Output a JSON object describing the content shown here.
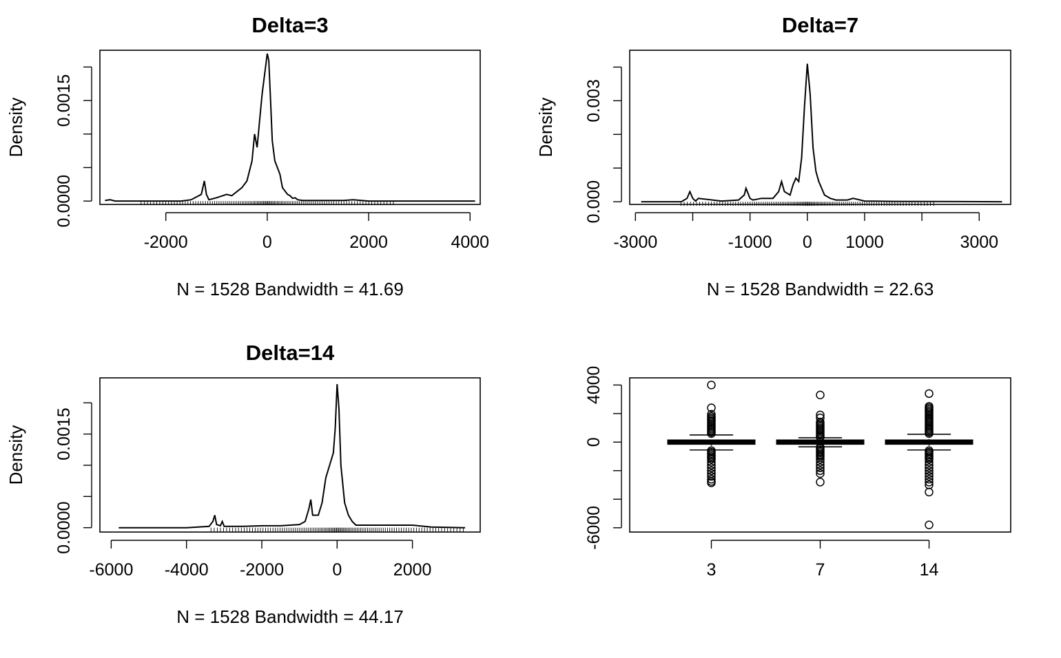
{
  "chart_data": [
    {
      "type": "line",
      "title": "Delta=3",
      "xlabel": "N = 1528   Bandwidth = 41.69",
      "ylabel": "Density",
      "xlim": [
        -3300,
        4200
      ],
      "ylim": [
        -5e-05,
        0.00225
      ],
      "xticks": [
        -2000,
        0,
        2000,
        4000
      ],
      "yticks": [
        0.0,
        0.0005,
        0.001,
        0.0015,
        0.002
      ],
      "ytick_labels": [
        "0.0000",
        "",
        "",
        "0.0015",
        ""
      ],
      "x": [
        -3200,
        -3100,
        -3000,
        -2500,
        -2000,
        -1700,
        -1500,
        -1300,
        -1240,
        -1200,
        -1150,
        -1000,
        -800,
        -700,
        -500,
        -400,
        -300,
        -250,
        -200,
        -150,
        -100,
        -50,
        0,
        30,
        60,
        100,
        150,
        200,
        250,
        300,
        400,
        450,
        500,
        550,
        600,
        700,
        800,
        1000,
        1500,
        1700,
        2000,
        2500,
        3000,
        4100
      ],
      "series": [
        {
          "values": [
            1e-05,
            2e-05,
            0,
            0,
            0,
            0,
            2e-05,
            0.0001,
            0.0003,
            0.0001,
            2e-05,
            5e-05,
            0.0001,
            8e-05,
            0.0002,
            0.0003,
            0.0006,
            0.001,
            0.0008,
            0.0012,
            0.0016,
            0.0019,
            0.0022,
            0.0021,
            0.0016,
            0.0009,
            0.0006,
            0.0005,
            0.0004,
            0.0002,
            0.0001,
            8e-05,
            4e-05,
            5e-05,
            2e-05,
            1e-05,
            1e-05,
            1e-05,
            1e-05,
            2e-05,
            0,
            0,
            0,
            0
          ]
        }
      ]
    },
    {
      "type": "line",
      "title": "Delta=7",
      "xlabel": "N = 1528   Bandwidth = 22.63",
      "ylabel": "Density",
      "xlim": [
        -3100,
        3550
      ],
      "ylim": [
        -8e-05,
        0.0045
      ],
      "xticks": [
        -3000,
        -2000,
        -1000,
        0,
        1000,
        2000,
        3000
      ],
      "xtick_labels": [
        "-3000",
        "",
        "-1000",
        "0",
        "1000",
        "",
        "3000"
      ],
      "yticks": [
        0.0,
        0.001,
        0.002,
        0.003,
        0.004
      ],
      "ytick_labels": [
        "0.000",
        "",
        "",
        "0.003",
        ""
      ],
      "x": [
        -2900,
        -2200,
        -2100,
        -2050,
        -2000,
        -1950,
        -1900,
        -1500,
        -1200,
        -1100,
        -1070,
        -1000,
        -950,
        -800,
        -600,
        -500,
        -450,
        -400,
        -300,
        -250,
        -200,
        -150,
        -100,
        -50,
        0,
        50,
        100,
        150,
        200,
        250,
        300,
        400,
        500,
        700,
        800,
        1000,
        1500,
        3400
      ],
      "series": [
        {
          "values": [
            0,
            0,
            0.0001,
            0.0003,
            0.0001,
            2e-05,
            0.0001,
            2e-05,
            5e-05,
            0.0002,
            0.0004,
            0.0001,
            5e-05,
            0.0001,
            0.0001,
            0.0003,
            0.0006,
            0.0003,
            0.0002,
            0.0005,
            0.0007,
            0.0006,
            0.0013,
            0.0028,
            0.0041,
            0.0032,
            0.0016,
            0.0009,
            0.0006,
            0.0004,
            0.0002,
            0.0001,
            5e-05,
            5e-05,
            0.0001,
            2e-05,
            1e-05,
            0
          ]
        }
      ]
    },
    {
      "type": "line",
      "title": "Delta=14",
      "xlabel": "N = 1528   Bandwidth = 44.17",
      "ylabel": "Density",
      "xlim": [
        -6300,
        3800
      ],
      "ylim": [
        -7e-05,
        0.0024
      ],
      "xticks": [
        -6000,
        -4000,
        -2000,
        0,
        2000
      ],
      "yticks": [
        0.0,
        0.0005,
        0.001,
        0.0015,
        0.002
      ],
      "ytick_labels": [
        "0.0000",
        "",
        "",
        "0.0015",
        ""
      ],
      "x": [
        -5800,
        -4000,
        -3400,
        -3300,
        -3250,
        -3200,
        -3100,
        -3050,
        -3000,
        -2500,
        -2000,
        -1500,
        -1000,
        -850,
        -750,
        -700,
        -650,
        -500,
        -400,
        -300,
        -200,
        -100,
        -50,
        0,
        50,
        100,
        200,
        300,
        400,
        500,
        1000,
        1500,
        2000,
        2500,
        3400
      ],
      "series": [
        {
          "values": [
            0,
            0,
            2e-05,
            0.0001,
            0.0002,
            5e-05,
            3e-05,
            0.0001,
            2e-05,
            2e-05,
            3e-05,
            3e-05,
            5e-05,
            0.0001,
            0.0003,
            0.00045,
            0.0002,
            0.0002,
            0.0004,
            0.0008,
            0.001,
            0.0012,
            0.0016,
            0.0023,
            0.0019,
            0.001,
            0.0004,
            0.0002,
            0.0001,
            4e-05,
            4e-05,
            4e-05,
            4e-05,
            1e-05,
            0
          ]
        }
      ]
    },
    {
      "type": "box",
      "categories": [
        "3",
        "7",
        "14"
      ],
      "ylim": [
        -6300,
        4500
      ],
      "yticks": [
        -6000,
        -4000,
        -2000,
        0,
        2000,
        4000
      ],
      "ytick_labels": [
        "-6000",
        "",
        "",
        "0",
        "",
        "4000"
      ],
      "boxes": [
        {
          "category": "3",
          "median": 0,
          "q1": -60,
          "q3": 60,
          "whisker_low": -550,
          "whisker_high": 500,
          "outliers": [
            4000,
            2400,
            1950,
            1800,
            1700,
            1600,
            1500,
            1400,
            1300,
            1200,
            1100,
            1000,
            900,
            800,
            700,
            600,
            -600,
            -700,
            -800,
            -900,
            -1000,
            -1100,
            -1200,
            -1400,
            -1600,
            -1800,
            -2000,
            -2200,
            -2400,
            -2600,
            -2750,
            -2850
          ]
        },
        {
          "category": "7",
          "median": 0,
          "q1": -40,
          "q3": 40,
          "whisker_low": -330,
          "whisker_high": 300,
          "outliers": [
            3300,
            1900,
            1700,
            1400,
            1300,
            1200,
            1100,
            1000,
            900,
            800,
            700,
            600,
            500,
            400,
            350,
            -350,
            -450,
            -550,
            -650,
            -750,
            -850,
            -950,
            -1050,
            -1200,
            -1400,
            -1600,
            -1800,
            -2000,
            -2200,
            -2800
          ]
        },
        {
          "category": "14",
          "median": 0,
          "q1": -60,
          "q3": 60,
          "whisker_low": -550,
          "whisker_high": 550,
          "outliers": [
            3400,
            2500,
            2400,
            2300,
            2200,
            2100,
            2000,
            1900,
            1800,
            1700,
            1600,
            1500,
            1400,
            1300,
            1200,
            1100,
            1000,
            900,
            800,
            700,
            600,
            -600,
            -700,
            -800,
            -900,
            -1000,
            -1100,
            -1200,
            -1400,
            -1600,
            -1800,
            -2000,
            -2200,
            -2400,
            -2600,
            -2800,
            -3000,
            -3500,
            -5800
          ]
        }
      ]
    }
  ]
}
